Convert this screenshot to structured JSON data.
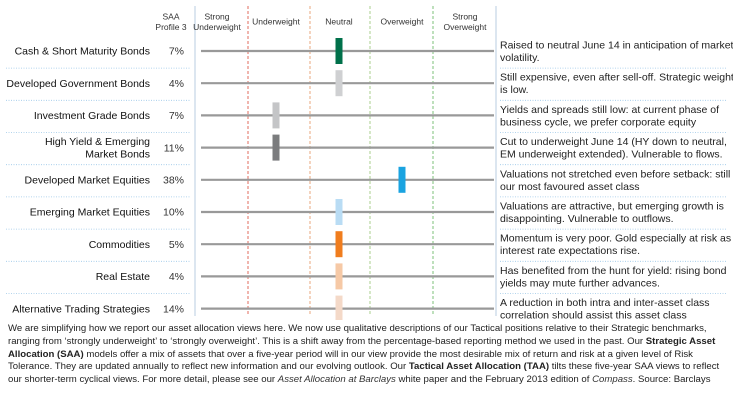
{
  "chart_data": {
    "type": "table",
    "column_headers": {
      "saa": [
        "SAA",
        "Profile 3"
      ],
      "scale": [
        [
          "Strong",
          "Underweight"
        ],
        [
          "Underweight"
        ],
        [
          "Neutral"
        ],
        [
          "Overweight"
        ],
        [
          "Strong",
          "Overweight"
        ]
      ]
    },
    "scale_levels": [
      "Strong Underweight",
      "Underweight",
      "Neutral",
      "Overweight",
      "Strong Overweight"
    ],
    "rows": [
      {
        "asset": [
          "Cash & Short Maturity Bonds"
        ],
        "saa": "7%",
        "position": 0,
        "color": "#00704a",
        "comment": [
          "Raised to neutral June 14 in anticipation of market",
          "volatility."
        ]
      },
      {
        "asset": [
          "Developed Government Bonds"
        ],
        "saa": "4%",
        "position": 0,
        "color": "#cfd0d2",
        "comment": [
          "Still expensive, even after sell-off. Strategic weight",
          "is low."
        ]
      },
      {
        "asset": [
          "Investment Grade Bonds"
        ],
        "saa": "7%",
        "position": -1,
        "color": "#c4c5c7",
        "comment": [
          "Yields and spreads still low: at current phase of",
          "business cycle, we prefer corporate equity"
        ]
      },
      {
        "asset": [
          "High Yield & Emerging",
          "Market Bonds"
        ],
        "saa": "11%",
        "position": -1,
        "color": "#7b7c7e",
        "comment": [
          "Cut to underweight June 14 (HY down to neutral,",
          "EM underweight extended). Vulnerable to flows."
        ]
      },
      {
        "asset": [
          "Developed Market Equities"
        ],
        "saa": "38%",
        "position": 1,
        "color": "#1aa3e0",
        "comment": [
          "Valuations not stretched even before setback: still",
          "our most favoured asset class"
        ]
      },
      {
        "asset": [
          "Emerging Market Equities"
        ],
        "saa": "10%",
        "position": 0,
        "color": "#b9dcf4",
        "comment": [
          "Valuations are attractive, but emerging growth is",
          "disappointing. Vulnerable to outflows."
        ]
      },
      {
        "asset": [
          "Commodities"
        ],
        "saa": "5%",
        "position": 0,
        "color": "#f07d1e",
        "comment": [
          "Momentum is very poor. Gold especially at risk as",
          "interest rate expectations rise."
        ]
      },
      {
        "asset": [
          "Real Estate"
        ],
        "saa": "4%",
        "position": 0,
        "color": "#f6c9a6",
        "comment": [
          "Has benefited from the hunt for yield: rising bond",
          "yields may mute further advances."
        ]
      },
      {
        "asset": [
          "Alternative Trading Strategies"
        ],
        "saa": "14%",
        "position": 0,
        "color": "#f4d9c8",
        "comment": [
          "A reduction in both intra and inter-asset class",
          "correlation should assist this asset class"
        ]
      }
    ]
  },
  "colors": {
    "strong_divider": "#e06b5e",
    "mild_divider": "#e8a77c",
    "overweight_divider": "#a9cf8c",
    "strong_over_divider": "#7ec27a",
    "row_line": "#999999",
    "separator": "#9cc7e8",
    "frame": "#b9cde0"
  },
  "footer": {
    "p1": "We are simplifying how we report our asset allocation views here. We now use qualitative descriptions of our Tactical positions relative to their Strategic benchmarks, ranging from ‘strongly underweight’ to ‘strongly overweight’. This is a shift away from the percentage-based reporting method we used in the past. Our ",
    "b1": "Strategic Asset Allocation (SAA)",
    "p2": " models offer a mix of assets that over a five-year period will in our view provide the most desirable mix of return and risk at a given level of Risk Tolerance. They are updated annually to reflect new information and our evolving outlook. Our ",
    "b2": "Tactical Asset Allocation (TAA)",
    "p3": " tilts these five-year SAA views to reflect our shorter-term cyclical views. For more detail, please see our ",
    "i1": "Asset Allocation at Barclays",
    "p4": " white paper and the February 2013 edition of ",
    "i2": "Compass",
    "p5": ". Source: Barclays"
  }
}
